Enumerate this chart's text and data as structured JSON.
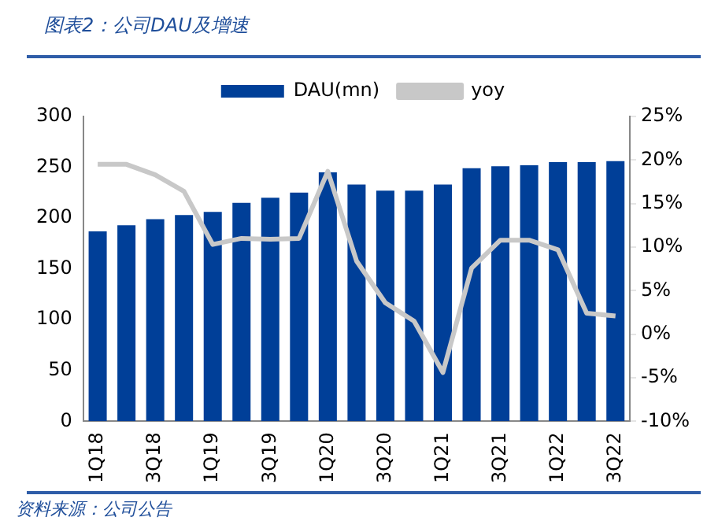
{
  "chart_data": {
    "type": "bar",
    "title": "图表2：公司DAU及增速",
    "annotations": [
      "资料来源：公司公告"
    ],
    "categories": [
      "1Q18",
      null,
      "3Q18",
      null,
      "1Q19",
      null,
      "3Q19",
      null,
      "1Q20",
      null,
      "3Q20",
      null,
      "1Q21",
      null,
      "3Q21",
      null,
      "1Q22",
      null,
      "3Q22"
    ],
    "series": [
      {
        "name": "DAU(mn)",
        "color": "#003f98",
        "values": [
          187,
          193,
          199,
          203,
          206,
          215,
          220,
          225,
          245,
          233,
          227,
          227,
          233,
          249,
          251,
          252,
          255,
          255,
          256
        ]
      },
      {
        "name": "yoy",
        "type": "line",
        "axis": "y2",
        "color": "#c8c8c8",
        "values": [
          19.5,
          19.5,
          18.3,
          16.4,
          10.3,
          11.0,
          10.9,
          11.0,
          18.7,
          8.4,
          3.6,
          1.5,
          -4.4,
          7.6,
          10.8,
          10.8,
          9.7,
          2.4,
          2.1
        ]
      }
    ],
    "ylim": [
      0,
      300
    ],
    "yticks": [
      0,
      50,
      100,
      150,
      200,
      250,
      300
    ],
    "y2lim": [
      -10,
      25
    ],
    "y2ticks": [
      {
        "value": -10,
        "label": "-10%"
      },
      {
        "value": -5,
        "label": "-5%"
      },
      {
        "value": 0,
        "label": "0%"
      },
      {
        "value": 5,
        "label": "5%"
      },
      {
        "value": 10,
        "label": "10%"
      },
      {
        "value": 15,
        "label": "15%"
      },
      {
        "value": 20,
        "label": "20%"
      },
      {
        "value": 25,
        "label": "25%"
      }
    ],
    "grid": false,
    "legend": "top",
    "marker": "none",
    "line_style": "solid"
  }
}
